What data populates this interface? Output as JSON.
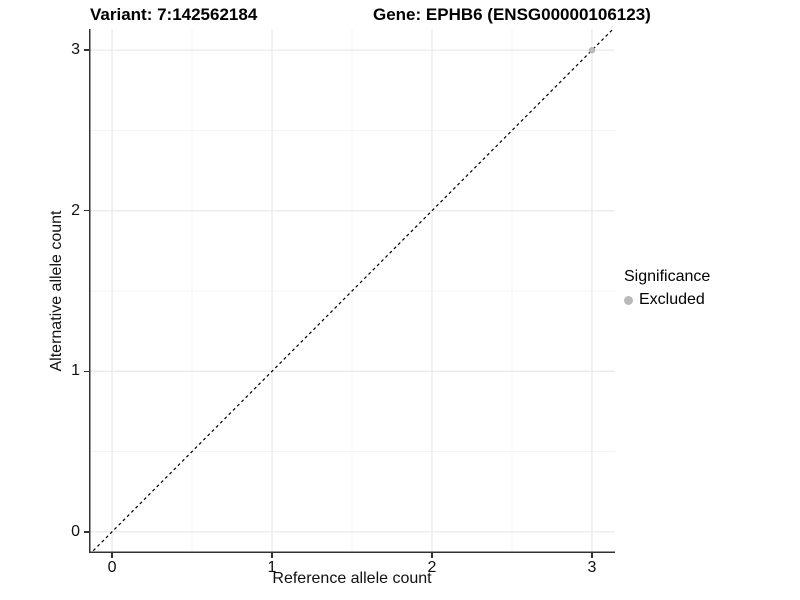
{
  "titles": {
    "variant": "Variant: 7:142562184",
    "gene": "Gene: EPHB6 (ENSG00000106123)"
  },
  "axes": {
    "x_label": "Reference allele count",
    "y_label": "Alternative allele count",
    "x_tick_labels": [
      "0",
      "1",
      "2",
      "3"
    ],
    "y_tick_labels": [
      "0",
      "1",
      "2",
      "3"
    ]
  },
  "legend": {
    "title": "Significance",
    "items": [
      {
        "label": "Excluded",
        "color": "#b9b9b9"
      }
    ]
  },
  "chart_data": {
    "type": "scatter",
    "title_left": "Variant: 7:142562184",
    "title_right": "Gene: EPHB6 (ENSG00000106123)",
    "xlabel": "Reference allele count",
    "ylabel": "Alternative allele count",
    "xlim": [
      -0.144,
      3.144
    ],
    "ylim": [
      -0.132,
      3.132
    ],
    "x_ticks": [
      0,
      1,
      2,
      3
    ],
    "y_ticks": [
      0,
      1,
      2,
      3
    ],
    "x_minor_ticks": [
      0.5,
      1.5,
      2.5
    ],
    "y_minor_ticks": [
      0.5,
      1.5,
      2.5
    ],
    "grid": true,
    "legend_position": "right",
    "series": [
      {
        "name": "Excluded",
        "color": "#b9b9b9",
        "points": [
          {
            "x": 3,
            "y": 3
          }
        ]
      }
    ],
    "abline": {
      "slope": 1,
      "intercept": 0,
      "linetype": "dashed",
      "color": "#000000"
    }
  },
  "style": {
    "grid_major": "#e8e8e8",
    "grid_minor": "#f4f4f4",
    "axis_line": "#333333",
    "point_radius": 3.2
  }
}
